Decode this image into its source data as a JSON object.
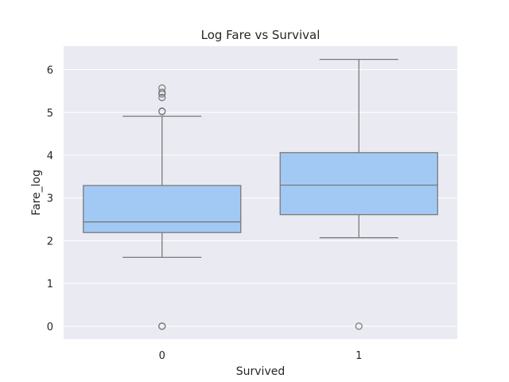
{
  "chart_data": {
    "type": "box",
    "title": "Log Fare vs Survival",
    "xlabel": "Survived",
    "ylabel": "Fare_log",
    "categories": [
      "0",
      "1"
    ],
    "ylim": [
      -0.3,
      6.55
    ],
    "yticks": [
      0,
      1,
      2,
      3,
      4,
      5,
      6
    ],
    "grid": true,
    "boxes": [
      {
        "category": "0",
        "whisker_low": 1.61,
        "q1": 2.19,
        "median": 2.44,
        "q3": 3.29,
        "whisker_high": 4.91,
        "outliers": [
          0,
          0,
          0,
          5.02,
          5.03,
          5.35,
          5.43,
          5.47,
          5.57
        ]
      },
      {
        "category": "1",
        "whisker_low": 2.07,
        "q1": 2.61,
        "median": 3.3,
        "q3": 4.06,
        "whisker_high": 6.24,
        "outliers": [
          0
        ]
      }
    ],
    "colors": {
      "box_fill": "#a1c9f4",
      "line": "#7a7a7a",
      "background": "#eaeaf2",
      "grid": "#ffffff",
      "text": "#262626"
    }
  }
}
